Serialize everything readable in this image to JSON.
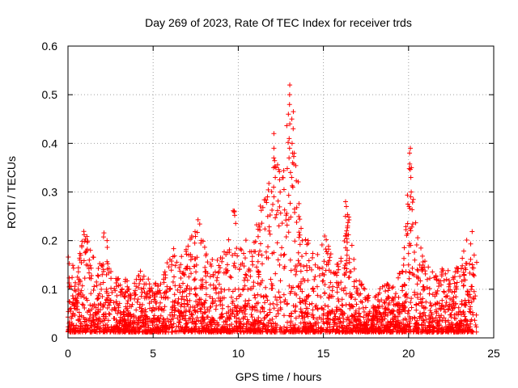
{
  "chart_data": {
    "type": "scatter",
    "title": "Day 269 of 2023, Rate Of TEC Index for receiver trds",
    "xlabel": "GPS time / hours",
    "ylabel": "ROTI / TECUs",
    "xlim": [
      0,
      25
    ],
    "ylim": [
      0,
      0.6
    ],
    "xticks": [
      0,
      5,
      10,
      15,
      20,
      25
    ],
    "yticks": [
      0,
      0.1,
      0.2,
      0.3,
      0.4,
      0.5,
      0.6
    ],
    "xtick_labels": [
      "0",
      "5",
      "10",
      "15",
      "20",
      "25"
    ],
    "ytick_labels": [
      "0",
      "0.1",
      "0.2",
      "0.3",
      "0.4",
      "0.5",
      "0.6"
    ],
    "grid": true,
    "marker": "plus",
    "color": "#ff0000",
    "x_range_of_data": [
      0,
      24
    ],
    "envelope": [
      {
        "x": 0.0,
        "y": 0.17
      },
      {
        "x": 0.5,
        "y": 0.14
      },
      {
        "x": 0.9,
        "y": 0.23
      },
      {
        "x": 1.3,
        "y": 0.19
      },
      {
        "x": 1.8,
        "y": 0.15
      },
      {
        "x": 2.2,
        "y": 0.24
      },
      {
        "x": 2.7,
        "y": 0.12
      },
      {
        "x": 3.2,
        "y": 0.13
      },
      {
        "x": 3.7,
        "y": 0.11
      },
      {
        "x": 4.3,
        "y": 0.14
      },
      {
        "x": 5.0,
        "y": 0.11
      },
      {
        "x": 5.5,
        "y": 0.12
      },
      {
        "x": 6.0,
        "y": 0.2
      },
      {
        "x": 6.5,
        "y": 0.16
      },
      {
        "x": 7.0,
        "y": 0.2
      },
      {
        "x": 7.6,
        "y": 0.26
      },
      {
        "x": 8.2,
        "y": 0.17
      },
      {
        "x": 8.7,
        "y": 0.16
      },
      {
        "x": 9.2,
        "y": 0.18
      },
      {
        "x": 9.7,
        "y": 0.27
      },
      {
        "x": 10.2,
        "y": 0.22
      },
      {
        "x": 10.8,
        "y": 0.18
      },
      {
        "x": 11.3,
        "y": 0.28
      },
      {
        "x": 11.7,
        "y": 0.3
      },
      {
        "x": 12.1,
        "y": 0.42
      },
      {
        "x": 12.6,
        "y": 0.33
      },
      {
        "x": 13.0,
        "y": 0.52
      },
      {
        "x": 13.3,
        "y": 0.45
      },
      {
        "x": 13.7,
        "y": 0.22
      },
      {
        "x": 14.2,
        "y": 0.2
      },
      {
        "x": 14.6,
        "y": 0.17
      },
      {
        "x": 15.1,
        "y": 0.22
      },
      {
        "x": 15.6,
        "y": 0.15
      },
      {
        "x": 16.1,
        "y": 0.2
      },
      {
        "x": 16.4,
        "y": 0.28
      },
      {
        "x": 16.9,
        "y": 0.13
      },
      {
        "x": 17.5,
        "y": 0.1
      },
      {
        "x": 18.1,
        "y": 0.09
      },
      {
        "x": 18.6,
        "y": 0.13
      },
      {
        "x": 19.2,
        "y": 0.11
      },
      {
        "x": 19.7,
        "y": 0.16
      },
      {
        "x": 20.1,
        "y": 0.39
      },
      {
        "x": 20.4,
        "y": 0.24
      },
      {
        "x": 20.9,
        "y": 0.17
      },
      {
        "x": 21.5,
        "y": 0.13
      },
      {
        "x": 22.0,
        "y": 0.15
      },
      {
        "x": 22.6,
        "y": 0.13
      },
      {
        "x": 23.2,
        "y": 0.18
      },
      {
        "x": 23.7,
        "y": 0.23
      },
      {
        "x": 24.0,
        "y": 0.2
      }
    ],
    "spikes": [
      {
        "x": 12.1,
        "ys": [
          0.42,
          0.39,
          0.37,
          0.35,
          0.33,
          0.31,
          0.29
        ]
      },
      {
        "x": 13.0,
        "ys": [
          0.52,
          0.5,
          0.48,
          0.46,
          0.44,
          0.41,
          0.39,
          0.37,
          0.34
        ]
      },
      {
        "x": 13.2,
        "ys": [
          0.45,
          0.43,
          0.4,
          0.38,
          0.36,
          0.33,
          0.31
        ]
      },
      {
        "x": 20.1,
        "ys": [
          0.39,
          0.38,
          0.35,
          0.33,
          0.3,
          0.29,
          0.27
        ]
      },
      {
        "x": 16.35,
        "ys": [
          0.28,
          0.27,
          0.25,
          0.23,
          0.22,
          0.21
        ]
      }
    ]
  }
}
